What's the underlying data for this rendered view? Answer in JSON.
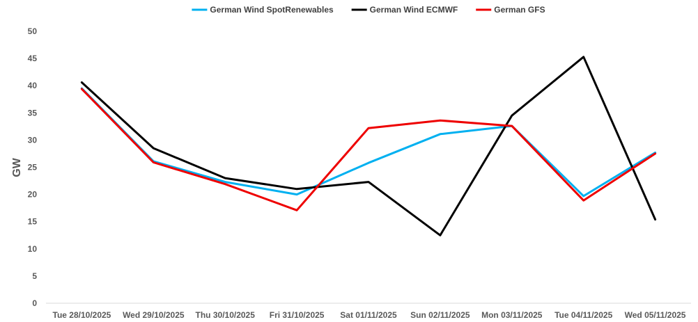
{
  "chart_data": {
    "type": "line",
    "title": "",
    "xlabel": "",
    "ylabel": "GW",
    "ylim": [
      0,
      50
    ],
    "yticks": [
      0,
      5,
      10,
      15,
      20,
      25,
      30,
      35,
      40,
      45,
      50
    ],
    "grid": false,
    "legend_position": "top-center",
    "categories": [
      "Tue 28/10/2025",
      "Wed 29/10/2025",
      "Thu 30/10/2025",
      "Fri 31/10/2025",
      "Sat 01/11/2025",
      "Sun 02/11/2025",
      "Mon 03/11/2025",
      "Tue 04/11/2025",
      "Wed 05/11/2025"
    ],
    "series": [
      {
        "name": "German Wind SpotRenewables",
        "color": "#00B0F0",
        "values": [
          39.5,
          26.1,
          22.3,
          20.0,
          25.8,
          31.1,
          32.6,
          19.7,
          27.7
        ]
      },
      {
        "name": "German Wind ECMWF",
        "color": "#000000",
        "values": [
          40.6,
          28.5,
          23.0,
          21.0,
          22.3,
          12.5,
          34.5,
          45.3,
          15.4
        ]
      },
      {
        "name": "German GFS",
        "color": "#EE0000",
        "values": [
          39.4,
          25.9,
          21.9,
          17.1,
          32.2,
          33.6,
          32.6,
          18.9,
          27.5
        ]
      }
    ]
  }
}
